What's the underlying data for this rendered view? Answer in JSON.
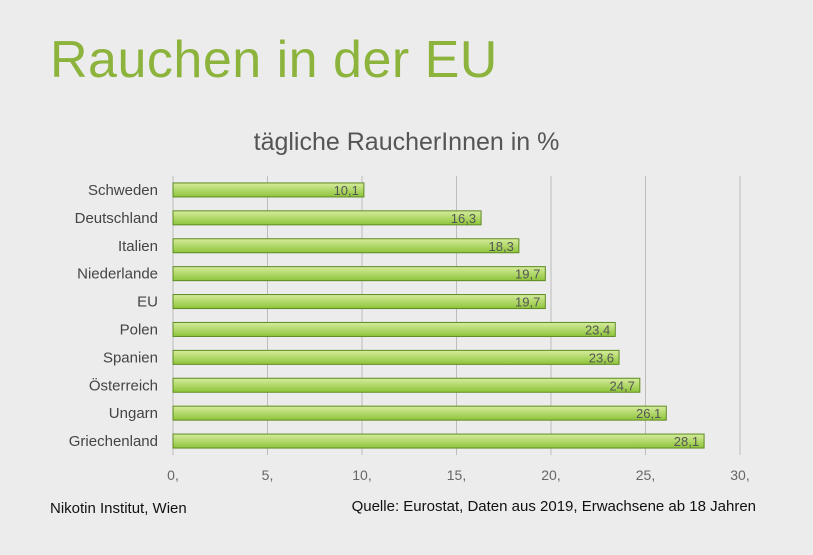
{
  "slide": {
    "title": "Rauchen in der EU",
    "footer_left": "Nikotin Institut, Wien",
    "footer_right": "Quelle: Eurostat, Daten aus 2019, Erwachsene ab 18 Jahren"
  },
  "colors": {
    "title": "#8cb43c",
    "bar_fill_top": "#d6ec9c",
    "bar_fill_bottom": "#8ec43a",
    "bar_stroke": "#5e8a22",
    "grid": "#bdbdbd",
    "background": "#ececec"
  },
  "chart_data": {
    "type": "bar",
    "orientation": "horizontal",
    "title": "tägliche RaucherInnen in %",
    "categories": [
      "Schweden",
      "Deutschland",
      "Italien",
      "Niederlande",
      "EU",
      "Polen",
      "Spanien",
      "Österreich",
      "Ungarn",
      "Griechenland"
    ],
    "values": [
      10.1,
      16.3,
      18.3,
      19.7,
      19.7,
      23.4,
      23.6,
      24.7,
      26.1,
      28.1
    ],
    "value_labels": [
      "10,1",
      "16,3",
      "18,3",
      "19,7",
      "19,7",
      "23,4",
      "23,6",
      "24,7",
      "26,1",
      "28,1"
    ],
    "xlim": [
      0,
      30
    ],
    "x_ticks": [
      0,
      5,
      10,
      15,
      20,
      25,
      30
    ],
    "x_tick_labels": [
      "0,",
      "5,",
      "10,",
      "15,",
      "20,",
      "25,",
      "30,"
    ],
    "grid": true,
    "legend": "none"
  }
}
